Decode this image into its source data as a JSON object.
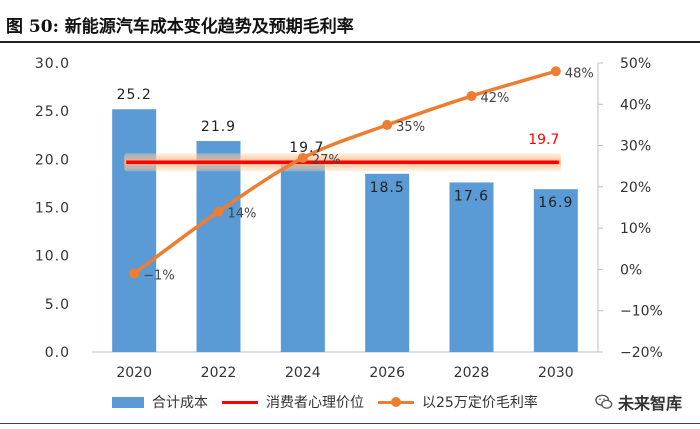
{
  "figure": {
    "title": "图  50:  新能源汽车成本变化趋势及预期毛利率",
    "watermark": "未来智库",
    "watermark_icon": "wechat-logo-icon"
  },
  "chart_data": {
    "type": "bar",
    "title": "新能源汽车成本变化趋势及预期毛利率",
    "categories": [
      "2020",
      "2022",
      "2024",
      "2026",
      "2028",
      "2030"
    ],
    "y_left": {
      "min": 0,
      "max": 30,
      "step": 5,
      "ticks": [
        "0.0",
        "5.0",
        "10.0",
        "15.0",
        "20.0",
        "25.0",
        "30.0"
      ]
    },
    "y_right": {
      "min": -20,
      "max": 50,
      "step": 10,
      "ticks": [
        "−20%",
        "−10%",
        "0%",
        "10%",
        "20%",
        "30%",
        "40%",
        "50%"
      ]
    },
    "series": [
      {
        "name": "合计成本",
        "kind": "bar",
        "axis": "left",
        "color": "#5B9BD5",
        "values": [
          25.2,
          21.9,
          19.7,
          18.5,
          17.6,
          16.9
        ],
        "labels": [
          "25.2",
          "21.9",
          "19.7",
          "18.5",
          "17.6",
          "16.9"
        ]
      },
      {
        "name": "消费者心理价位",
        "kind": "hline",
        "axis": "left",
        "color": "#FF0000",
        "value": 19.7,
        "label": "19.7"
      },
      {
        "name": "以25万定价毛利率",
        "kind": "line",
        "axis": "right",
        "color": "#ED7D31",
        "values": [
          -1,
          14,
          27,
          35,
          42,
          48
        ],
        "labels": [
          "−1%",
          "14%",
          "27%",
          "35%",
          "42%",
          "48%"
        ]
      }
    ]
  }
}
